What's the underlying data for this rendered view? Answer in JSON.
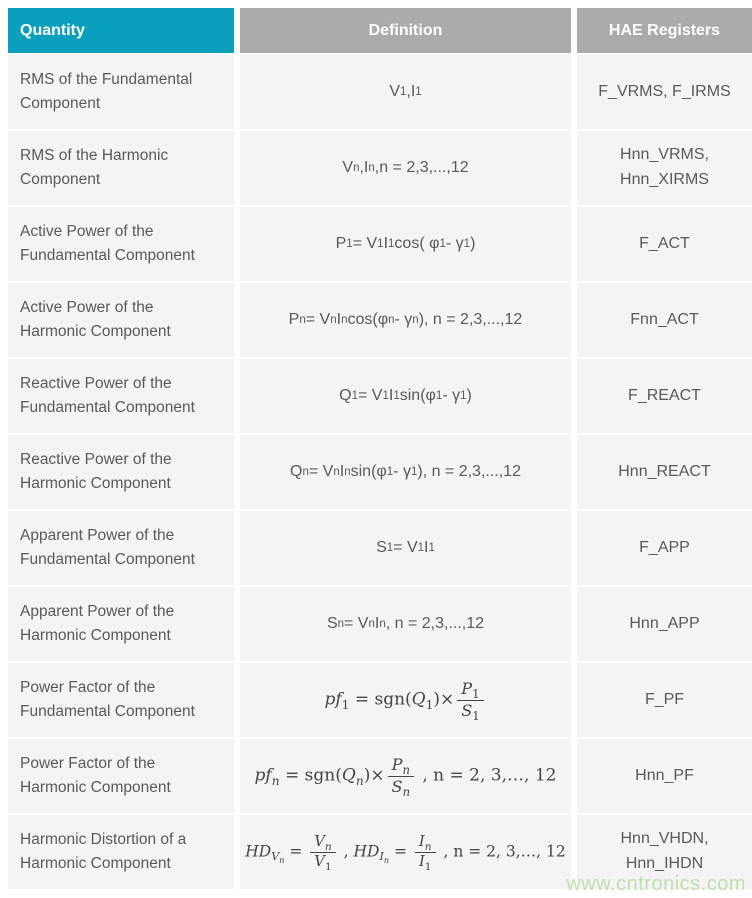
{
  "colors": {
    "header_accent": "#0a9fbd",
    "header_gray": "#ababab",
    "cell_bg": "#f4f4f5",
    "text": "#595959",
    "math": "#454545",
    "watermark": "#bce1ae"
  },
  "table": {
    "headers": {
      "quantity": "Quantity",
      "definition": "Definition",
      "registers": "HAE Registers"
    },
    "rows": [
      {
        "quantity": "RMS of the Fundamental Component",
        "definition_html": "V<sub>1</sub>,I<sub>1</sub>",
        "registers_html": "F_VRMS, F_IRMS"
      },
      {
        "quantity": "RMS of the Harmonic Component",
        "definition_html": "V<sub>n</sub>,I<sub>n</sub>,n = 2,3,...,12",
        "registers_html": "Hnn_VRMS,<br>Hnn_XIRMS"
      },
      {
        "quantity": "Active Power of the Fundamental Component",
        "definition_html": "P<sub>1</sub> = V<sub>1</sub>I<sub>1</sub>cos( φ<sub>1</sub> - γ<sub>1</sub>)",
        "registers_html": "F_ACT"
      },
      {
        "quantity": "Active Power of the Harmonic Component",
        "definition_html": "P<sub>n</sub> = V<sub>n</sub>I<sub>n</sub>cos(φ<sub>n</sub> - γ<sub>n</sub>), n = 2,3,...,12",
        "registers_html": "Fnn_ACT"
      },
      {
        "quantity": "Reactive Power of the Fundamental Component",
        "definition_html": "Q<sub>1</sub> = V<sub>1</sub>I<sub>1</sub>sin(φ<sub>1</sub> - γ<sub>1</sub>)",
        "registers_html": "F_REACT"
      },
      {
        "quantity": "Reactive Power of the Harmonic Component",
        "definition_html": "Q<sub>n</sub> = V<sub>n</sub>I<sub>n</sub>sin(φ<sub>1</sub> - γ<sub>1</sub>), n = 2,3,...,12",
        "registers_html": "Hnn_REACT"
      },
      {
        "quantity": "Apparent Power of the Fundamental Component",
        "definition_html": "S<sub>1</sub> = V<sub>1</sub>I<sub>1</sub>",
        "registers_html": "F_APP"
      },
      {
        "quantity": "Apparent Power of the Harmonic Component",
        "definition_html": "S<sub>n</sub> = V<sub>n</sub>I<sub>n</sub>, n = 2,3,...,12",
        "registers_html": "Hnn_APP"
      },
      {
        "quantity": "Power Factor of the Fundamental Component",
        "definition_html": "<span class=\"math\"><i>pf</i><sub>1</sub> = sgn(<i>Q</i><sub>1</sub>)×<span class=\"frac\"><span class=\"num\"><i>P</i><sub>1</sub></span><span class=\"den\"><i>S</i><sub>1</sub></span></span></span>",
        "registers_html": "F_PF"
      },
      {
        "quantity": "Power Factor of the Harmonic Component",
        "definition_html": "<span class=\"math\"><i>pf</i><sub><i>n</i></sub> = sgn(<i>Q</i><sub><i>n</i></sub>)×<span class=\"frac\"><span class=\"num\"><i>P</i><sub><i>n</i></sub></span><span class=\"den\"><i>S</i><sub><i>n</i></sub></span></span> , n = 2, 3,…, 12</span>",
        "registers_html": "Hnn_PF"
      },
      {
        "quantity": "Harmonic Distortion of a Harmonic Component",
        "definition_html": "<span class=\"math small\"><i>HD</i><sub><i>V</i><sub><i>n</i></sub></sub> = <span class=\"frac\"><span class=\"num\"><i>V</i><sub><i>n</i></sub></span><span class=\"den\"><i>V</i><sub>1</sub></span></span> , <i>HD</i><sub><i>I</i><sub><i>n</i></sub></sub> = <span class=\"frac\"><span class=\"num\"><i>I</i><sub><i>n</i></sub></span><span class=\"den\"><i>I</i><sub>1</sub></span></span> , n = 2, 3,…, 12</span>",
        "registers_html": "Hnn_VHDN,<br>Hnn_IHDN"
      }
    ]
  },
  "watermark": "www.cntronics.com"
}
